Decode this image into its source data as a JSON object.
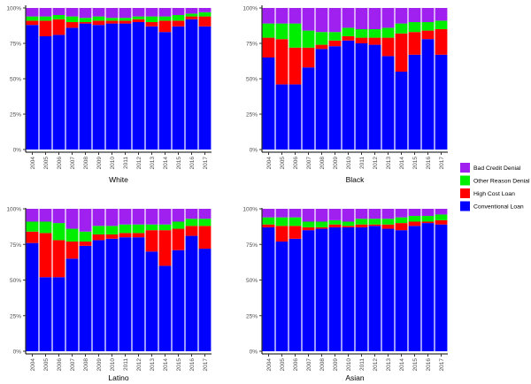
{
  "legend": {
    "entries": [
      {
        "label": "Bad Credit Denial",
        "color": "#A020F0"
      },
      {
        "label": "Other Reason Denial",
        "color": "#00EE00"
      },
      {
        "label": "High Cost Loan",
        "color": "#FF0000"
      },
      {
        "label": "Conventional Loan",
        "color": "#0000FF"
      }
    ]
  },
  "chart_data": [
    {
      "type": "bar",
      "stacked": true,
      "title": "White",
      "categories": [
        "2004",
        "2005",
        "2006",
        "2007",
        "2008",
        "2009",
        "2010",
        "2011",
        "2012",
        "2013",
        "2014",
        "2015",
        "2016",
        "2017"
      ],
      "y_ticks": [
        "0%",
        "25%",
        "50%",
        "75%",
        "100%"
      ],
      "ylim": [
        0,
        100
      ],
      "series": [
        {
          "name": "Conventional Loan",
          "values": [
            88,
            80,
            81,
            86,
            89,
            88,
            89,
            89,
            90,
            87,
            83,
            87,
            92,
            87
          ]
        },
        {
          "name": "High Cost Loan",
          "values": [
            3,
            11,
            11,
            4,
            1,
            3,
            2,
            2,
            2,
            3,
            8,
            4,
            2,
            7
          ]
        },
        {
          "name": "Other Reason Denial",
          "values": [
            3,
            3,
            3,
            4,
            3,
            3,
            2,
            2,
            2,
            4,
            3,
            4,
            2,
            3
          ]
        },
        {
          "name": "Bad Credit Denial",
          "values": [
            6,
            6,
            5,
            6,
            7,
            6,
            7,
            7,
            6,
            6,
            6,
            5,
            4,
            3
          ]
        }
      ]
    },
    {
      "type": "bar",
      "stacked": true,
      "title": "Black",
      "categories": [
        "2004",
        "2005",
        "2006",
        "2007",
        "2008",
        "2009",
        "2010",
        "2011",
        "2012",
        "2013",
        "2014",
        "2015",
        "2016",
        "2017"
      ],
      "y_ticks": [
        "0%",
        "25%",
        "50%",
        "75%",
        "100%"
      ],
      "ylim": [
        0,
        100
      ],
      "series": [
        {
          "name": "Conventional Loan",
          "values": [
            65,
            46,
            46,
            58,
            71,
            73,
            77,
            75,
            74,
            66,
            55,
            67,
            78,
            67
          ]
        },
        {
          "name": "High Cost Loan",
          "values": [
            14,
            32,
            26,
            14,
            3,
            4,
            3,
            4,
            5,
            13,
            27,
            16,
            6,
            18
          ]
        },
        {
          "name": "Other Reason Denial",
          "values": [
            10,
            11,
            17,
            12,
            9,
            6,
            6,
            6,
            6,
            7,
            7,
            7,
            6,
            6
          ]
        },
        {
          "name": "Bad Credit Denial",
          "values": [
            11,
            11,
            11,
            16,
            17,
            17,
            14,
            15,
            15,
            14,
            11,
            10,
            10,
            9
          ]
        }
      ]
    },
    {
      "type": "bar",
      "stacked": true,
      "title": "Latino",
      "categories": [
        "2004",
        "2005",
        "2006",
        "2007",
        "2008",
        "2009",
        "2010",
        "2011",
        "2012",
        "2013",
        "2014",
        "2015",
        "2016",
        "2017"
      ],
      "y_ticks": [
        "0%",
        "25%",
        "50%",
        "75%",
        "100%"
      ],
      "ylim": [
        0,
        100
      ],
      "series": [
        {
          "name": "Conventional Loan",
          "values": [
            76,
            52,
            52,
            65,
            74,
            78,
            79,
            80,
            80,
            70,
            60,
            71,
            81,
            72
          ]
        },
        {
          "name": "High Cost Loan",
          "values": [
            8,
            31,
            26,
            12,
            3,
            4,
            3,
            3,
            3,
            15,
            25,
            15,
            7,
            16
          ]
        },
        {
          "name": "Other Reason Denial",
          "values": [
            7,
            8,
            12,
            9,
            7,
            6,
            6,
            6,
            6,
            4,
            4,
            5,
            5,
            5
          ]
        },
        {
          "name": "Bad Credit Denial",
          "values": [
            9,
            9,
            10,
            14,
            16,
            12,
            12,
            11,
            11,
            11,
            11,
            9,
            7,
            7
          ]
        }
      ]
    },
    {
      "type": "bar",
      "stacked": true,
      "title": "Asian",
      "categories": [
        "2004",
        "2005",
        "2006",
        "2007",
        "2008",
        "2009",
        "2010",
        "2011",
        "2012",
        "2013",
        "2014",
        "2015",
        "2016",
        "2017"
      ],
      "y_ticks": [
        "0%",
        "25%",
        "50%",
        "75%",
        "100%"
      ],
      "ylim": [
        0,
        100
      ],
      "series": [
        {
          "name": "Conventional Loan",
          "values": [
            87,
            77,
            79,
            85,
            86,
            87,
            87,
            87,
            88,
            86,
            85,
            88,
            90,
            89
          ]
        },
        {
          "name": "High Cost Loan",
          "values": [
            2,
            11,
            9,
            2,
            1,
            2,
            1,
            2,
            1,
            3,
            5,
            3,
            1,
            3
          ]
        },
        {
          "name": "Other Reason Denial",
          "values": [
            5,
            6,
            6,
            4,
            4,
            3,
            3,
            4,
            4,
            4,
            4,
            4,
            4,
            4
          ]
        },
        {
          "name": "Bad Credit Denial",
          "values": [
            6,
            6,
            6,
            9,
            9,
            8,
            9,
            7,
            7,
            7,
            6,
            5,
            5,
            4
          ]
        }
      ]
    }
  ]
}
